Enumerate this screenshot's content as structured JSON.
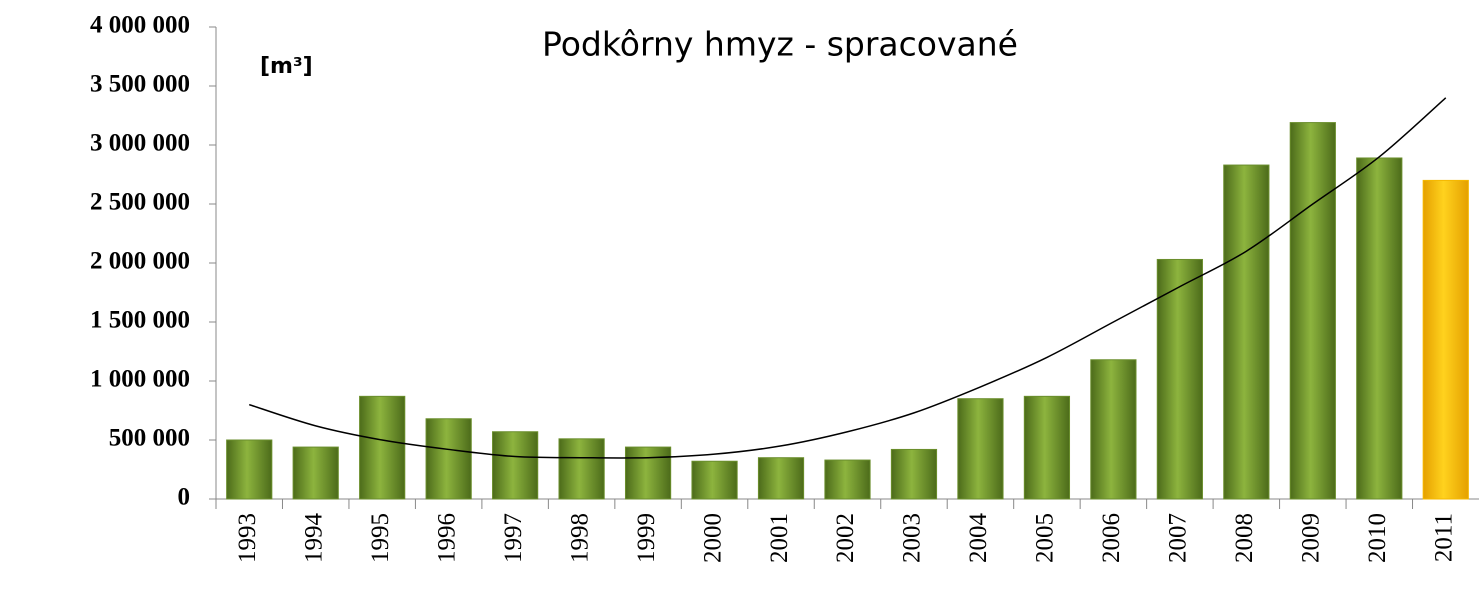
{
  "chart_data": {
    "type": "bar",
    "title": "Podkôrny hmyz - spracované",
    "y_label": "[m³]",
    "categories": [
      "1993",
      "1994",
      "1995",
      "1996",
      "1997",
      "1998",
      "1999",
      "2000",
      "2001",
      "2002",
      "2003",
      "2004",
      "2005",
      "2006",
      "2007",
      "2008",
      "2009",
      "2010",
      "2011"
    ],
    "values": [
      500000,
      440000,
      870000,
      680000,
      570000,
      510000,
      440000,
      320000,
      350000,
      330000,
      420000,
      850000,
      870000,
      1180000,
      2030000,
      2830000,
      3190000,
      2890000,
      2700000
    ],
    "colors": [
      "#6a8e2c",
      "#6a8e2c",
      "#6a8e2c",
      "#6a8e2c",
      "#6a8e2c",
      "#6a8e2c",
      "#6a8e2c",
      "#6a8e2c",
      "#6a8e2c",
      "#6a8e2c",
      "#6a8e2c",
      "#6a8e2c",
      "#6a8e2c",
      "#6a8e2c",
      "#6a8e2c",
      "#6a8e2c",
      "#6a8e2c",
      "#6a8e2c",
      "#f5b800"
    ],
    "trend": {
      "color": "#000000",
      "values": [
        800000,
        620000,
        500000,
        420000,
        360000,
        350000,
        350000,
        380000,
        450000,
        570000,
        730000,
        950000,
        1200000,
        1500000,
        1800000,
        2100000,
        2500000,
        2900000,
        3400000
      ]
    },
    "ylim": [
      0,
      4000000
    ],
    "yticks": [
      0,
      {
        "value": 500000,
        "label": "500 000"
      },
      {
        "value": 1000000,
        "label": "1 000 000"
      },
      {
        "value": 1500000,
        "label": "1 500 000"
      },
      {
        "value": 2000000,
        "label": "2 000 000"
      },
      {
        "value": 2500000,
        "label": "2 500 000"
      },
      {
        "value": 3000000,
        "label": "3 000 000"
      },
      {
        "value": 3500000,
        "label": "3 500 000"
      },
      {
        "value": 4000000,
        "label": "4 000 000"
      }
    ]
  }
}
